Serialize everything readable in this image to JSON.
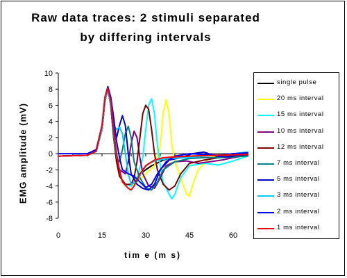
{
  "chart_data": {
    "type": "line",
    "title_line1": "Raw data traces:  2 stimuli separated",
    "title_line2": "by differing intervals",
    "xlabel": "tim e (m s)",
    "ylabel": "EMG amplitude (mV)",
    "xlim": [
      0,
      65
    ],
    "ylim": [
      -8,
      10
    ],
    "xticks": [
      0,
      15,
      30,
      45,
      60
    ],
    "yticks": [
      -8,
      -6,
      -4,
      -2,
      0,
      2,
      4,
      6,
      8,
      10
    ],
    "grid": false,
    "legend_position": "right",
    "series": [
      {
        "name": "single pulse",
        "color": "#000000",
        "points": [
          [
            0,
            -0.3
          ],
          [
            10,
            -0.2
          ],
          [
            13,
            0.3
          ],
          [
            15,
            3
          ],
          [
            16,
            6.5
          ],
          [
            17,
            8
          ],
          [
            18,
            6
          ],
          [
            19,
            2
          ],
          [
            20,
            -1
          ],
          [
            21,
            -2.8
          ],
          [
            23,
            -3.8
          ],
          [
            25,
            -4
          ],
          [
            26,
            -3.5
          ],
          [
            28,
            -2.5
          ],
          [
            32,
            -1.5
          ],
          [
            36,
            -0.8
          ],
          [
            40,
            -0.4
          ],
          [
            45,
            -0.3
          ],
          [
            55,
            -0.2
          ],
          [
            65,
            -0.2
          ]
        ]
      },
      {
        "name": "20 ms interval",
        "color": "#ffff00",
        "points": [
          [
            0,
            -0.3
          ],
          [
            10,
            -0.2
          ],
          [
            13,
            0.3
          ],
          [
            15,
            3
          ],
          [
            16,
            6.5
          ],
          [
            17,
            8
          ],
          [
            18,
            6
          ],
          [
            19,
            2
          ],
          [
            20,
            -1
          ],
          [
            21,
            -2.8
          ],
          [
            23,
            -3.8
          ],
          [
            25,
            -4
          ],
          [
            27,
            -3.5
          ],
          [
            30,
            -2.5
          ],
          [
            33,
            -1.5
          ],
          [
            35,
            1
          ],
          [
            36,
            5
          ],
          [
            37,
            6.7
          ],
          [
            38,
            5
          ],
          [
            39,
            1
          ],
          [
            40,
            -1
          ],
          [
            42,
            -3
          ],
          [
            44,
            -5
          ],
          [
            45,
            -5.3
          ],
          [
            46,
            -4
          ],
          [
            48,
            -2
          ],
          [
            52,
            -0.5
          ],
          [
            56,
            -0.2
          ],
          [
            65,
            -0.1
          ]
        ]
      },
      {
        "name": "15 ms interval",
        "color": "#00ffff",
        "points": [
          [
            0,
            -0.3
          ],
          [
            10,
            -0.2
          ],
          [
            13,
            0.3
          ],
          [
            15,
            3
          ],
          [
            16,
            6.5
          ],
          [
            17,
            8
          ],
          [
            18,
            6
          ],
          [
            19,
            2
          ],
          [
            20,
            -1
          ],
          [
            21,
            -2.8
          ],
          [
            23,
            -3.8
          ],
          [
            25,
            -4
          ],
          [
            27,
            -3
          ],
          [
            29,
            -0.5
          ],
          [
            30,
            3
          ],
          [
            31,
            6
          ],
          [
            32,
            6.8
          ],
          [
            33,
            5
          ],
          [
            34,
            1
          ],
          [
            35,
            -1.5
          ],
          [
            36,
            -3.5
          ],
          [
            38,
            -5
          ],
          [
            39,
            -5.6
          ],
          [
            40,
            -5
          ],
          [
            42,
            -3
          ],
          [
            45,
            -1.5
          ],
          [
            50,
            -1.2
          ],
          [
            55,
            -1.4
          ],
          [
            60,
            -0.9
          ],
          [
            65,
            -0.3
          ]
        ]
      },
      {
        "name": "10 ms interval",
        "color": "#800080",
        "points": [
          [
            0,
            -0.3
          ],
          [
            10,
            -0.2
          ],
          [
            13,
            0.3
          ],
          [
            15,
            3
          ],
          [
            16,
            6.5
          ],
          [
            17,
            8
          ],
          [
            18,
            6
          ],
          [
            19,
            2
          ],
          [
            20,
            -1
          ],
          [
            21,
            -2
          ],
          [
            23,
            -2.5
          ],
          [
            24,
            -1
          ],
          [
            25,
            1.2
          ],
          [
            26,
            2.8
          ],
          [
            27,
            2
          ],
          [
            28,
            -0.5
          ],
          [
            29,
            -2.5
          ],
          [
            31,
            -4
          ],
          [
            33,
            -4.3
          ],
          [
            35,
            -3
          ],
          [
            37,
            -1.5
          ],
          [
            40,
            -1
          ],
          [
            44,
            -0.9
          ],
          [
            48,
            -1.2
          ],
          [
            52,
            -1
          ],
          [
            56,
            -0.8
          ],
          [
            60,
            -0.5
          ],
          [
            65,
            -0.2
          ]
        ]
      },
      {
        "name": "12 ms interval",
        "color": "#800000",
        "points": [
          [
            0,
            -0.3
          ],
          [
            10,
            -0.2
          ],
          [
            13,
            0.3
          ],
          [
            15,
            3
          ],
          [
            16,
            6.5
          ],
          [
            17,
            8
          ],
          [
            18,
            6
          ],
          [
            19,
            2
          ],
          [
            20,
            -1
          ],
          [
            21,
            -2.8
          ],
          [
            23,
            -3.8
          ],
          [
            25,
            -3.8
          ],
          [
            26,
            -3
          ],
          [
            27,
            -1
          ],
          [
            28,
            2
          ],
          [
            29,
            5
          ],
          [
            30,
            6
          ],
          [
            31,
            5.5
          ],
          [
            32,
            3
          ],
          [
            33,
            0
          ],
          [
            34,
            -2
          ],
          [
            36,
            -3.8
          ],
          [
            38,
            -4.5
          ],
          [
            40,
            -4
          ],
          [
            42,
            -2.5
          ],
          [
            45,
            -1.2
          ],
          [
            50,
            -0.8
          ],
          [
            55,
            -0.5
          ],
          [
            60,
            -0.3
          ],
          [
            65,
            -0.2
          ]
        ]
      },
      {
        "name": "7 ms interval",
        "color": "#008080",
        "points": [
          [
            0,
            -0.3
          ],
          [
            10,
            -0.2
          ],
          [
            13,
            0.3
          ],
          [
            15,
            3
          ],
          [
            16,
            6.5
          ],
          [
            17,
            8
          ],
          [
            18,
            6
          ],
          [
            19,
            2
          ],
          [
            20,
            -0.5
          ],
          [
            21,
            -1
          ],
          [
            22,
            0.5
          ],
          [
            23,
            2.5
          ],
          [
            24,
            3.4
          ],
          [
            25,
            2
          ],
          [
            26,
            -1
          ],
          [
            28,
            -3
          ],
          [
            30,
            -4.2
          ],
          [
            32,
            -4.5
          ],
          [
            34,
            -3.5
          ],
          [
            36,
            -2
          ],
          [
            40,
            -1
          ],
          [
            45,
            -0.6
          ],
          [
            50,
            -0.5
          ],
          [
            55,
            -0.5
          ],
          [
            60,
            -0.4
          ],
          [
            65,
            -0.3
          ]
        ]
      },
      {
        "name": "5 ms interval",
        "color": "#0000cc",
        "points": [
          [
            0,
            -0.3
          ],
          [
            10,
            -0.2
          ],
          [
            13,
            0.3
          ],
          [
            15,
            3
          ],
          [
            16,
            6.5
          ],
          [
            17,
            8
          ],
          [
            18,
            6
          ],
          [
            19,
            3
          ],
          [
            20,
            2
          ],
          [
            21,
            3.5
          ],
          [
            22,
            4.7
          ],
          [
            23,
            3.5
          ],
          [
            24,
            0
          ],
          [
            25,
            -2.5
          ],
          [
            27,
            -3.8
          ],
          [
            29,
            -4.3
          ],
          [
            31,
            -4.5
          ],
          [
            33,
            -3.8
          ],
          [
            35,
            -2
          ],
          [
            38,
            -0.8
          ],
          [
            42,
            -0.5
          ],
          [
            46,
            0
          ],
          [
            50,
            0.2
          ],
          [
            54,
            -0.3
          ],
          [
            58,
            -0.4
          ],
          [
            62,
            -0.2
          ],
          [
            65,
            -0.1
          ]
        ]
      },
      {
        "name": "3 ms interval",
        "color": "#00ccff",
        "points": [
          [
            0,
            -0.3
          ],
          [
            10,
            -0.2
          ],
          [
            13,
            0.3
          ],
          [
            15,
            3
          ],
          [
            16,
            6.5
          ],
          [
            17,
            8
          ],
          [
            18,
            6
          ],
          [
            19,
            3.5
          ],
          [
            20,
            3
          ],
          [
            21,
            3.3
          ],
          [
            22,
            2.5
          ],
          [
            23,
            0
          ],
          [
            24,
            -2.5
          ],
          [
            25,
            -3.8
          ],
          [
            27,
            -3.5
          ],
          [
            29,
            -2
          ],
          [
            31,
            -1.2
          ],
          [
            34,
            -0.8
          ],
          [
            38,
            -0.6
          ],
          [
            44,
            -0.5
          ],
          [
            50,
            -0.3
          ],
          [
            55,
            -0.2
          ],
          [
            60,
            0
          ],
          [
            65,
            0.2
          ]
        ]
      },
      {
        "name": "2 ms interval",
        "color": "#0000ff",
        "points": [
          [
            0,
            0
          ],
          [
            10,
            0
          ],
          [
            13,
            0.5
          ],
          [
            15,
            3.5
          ],
          [
            16,
            7
          ],
          [
            17,
            8.3
          ],
          [
            18,
            7
          ],
          [
            19,
            4.5
          ],
          [
            20,
            1.5
          ],
          [
            21,
            -0.5
          ],
          [
            22,
            -2
          ],
          [
            24,
            -2.5
          ],
          [
            26,
            -2.8
          ],
          [
            28,
            -3.5
          ],
          [
            30,
            -4.2
          ],
          [
            32,
            -3.8
          ],
          [
            34,
            -2.5
          ],
          [
            37,
            -1
          ],
          [
            40,
            -0.3
          ],
          [
            45,
            0
          ],
          [
            50,
            -0.1
          ],
          [
            55,
            -0.2
          ],
          [
            60,
            0
          ],
          [
            65,
            0.1
          ]
        ]
      },
      {
        "name": "1 ms interval",
        "color": "#ff0000",
        "points": [
          [
            0,
            -0.3
          ],
          [
            10,
            -0.2
          ],
          [
            13,
            0.3
          ],
          [
            15,
            3.5
          ],
          [
            16,
            7
          ],
          [
            17,
            8.1
          ],
          [
            18,
            6.5
          ],
          [
            19,
            3
          ],
          [
            20,
            0
          ],
          [
            21,
            -2
          ],
          [
            22,
            -3.5
          ],
          [
            24,
            -4.3
          ],
          [
            25,
            -4.5
          ],
          [
            26,
            -4
          ],
          [
            28,
            -2.5
          ],
          [
            30,
            -1.5
          ],
          [
            33,
            -0.8
          ],
          [
            36,
            -0.5
          ],
          [
            40,
            -0.4
          ],
          [
            45,
            -0.3
          ],
          [
            55,
            -0.2
          ],
          [
            65,
            -0.1
          ]
        ]
      }
    ]
  }
}
